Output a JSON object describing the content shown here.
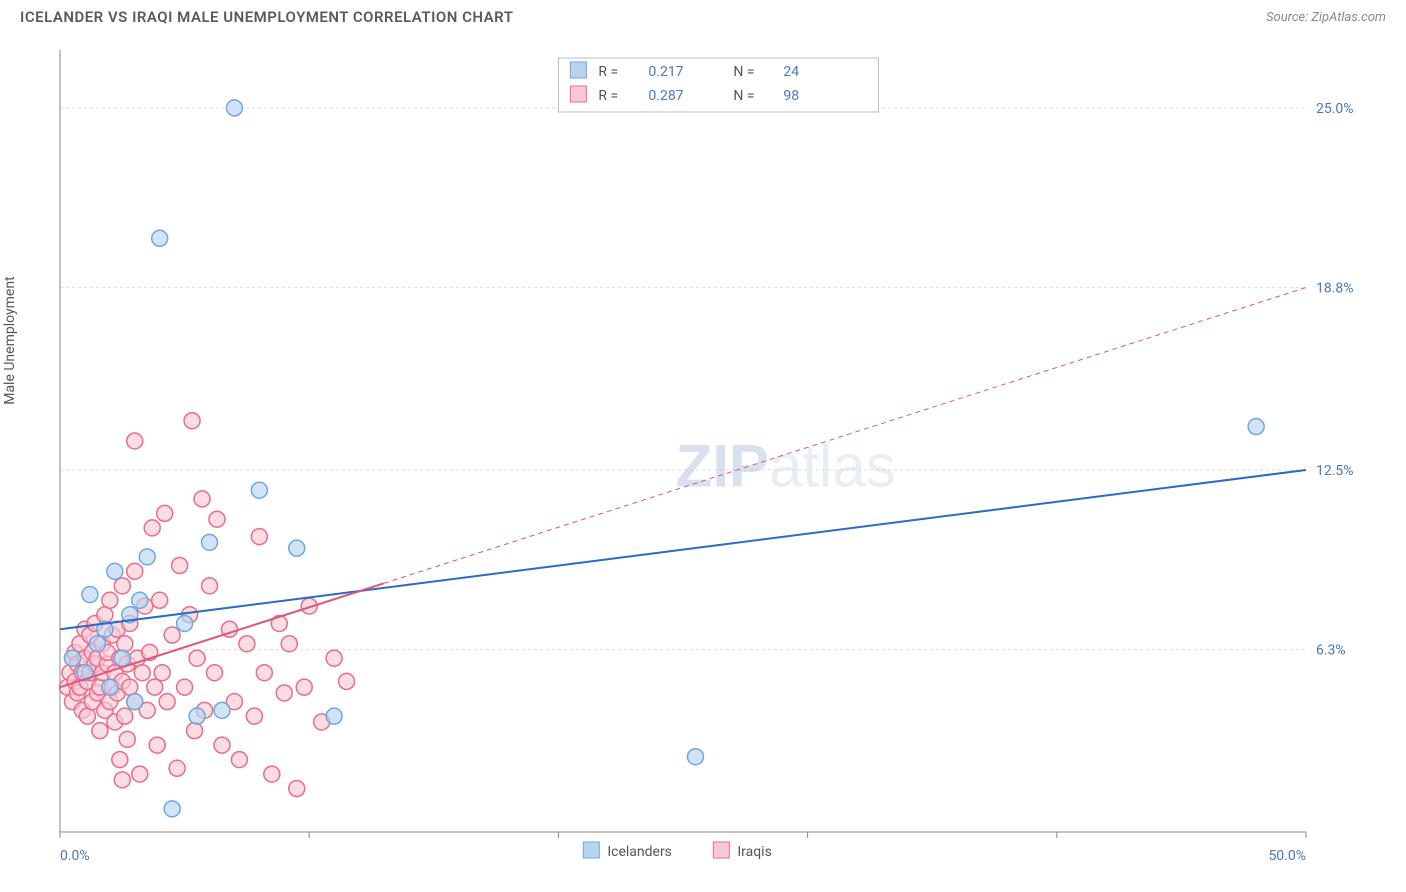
{
  "title": "ICELANDER VS IRAQI MALE UNEMPLOYMENT CORRELATION CHART",
  "source": "Source: ZipAtlas.com",
  "ylabel": "Male Unemployment",
  "watermark": {
    "bold": "ZIP",
    "light": "atlas"
  },
  "chart": {
    "type": "scatter",
    "background_color": "#ffffff",
    "grid_color": "#dddddd",
    "axis_color": "#888888",
    "xlim": [
      0,
      50
    ],
    "ylim": [
      0,
      27
    ],
    "x_ticks": [
      0,
      10,
      20,
      30,
      40,
      50
    ],
    "x_tick_labels": [
      "0.0%",
      "",
      "",
      "",
      "",
      "50.0%"
    ],
    "x_tick_label_color": "#4a75c4",
    "y_gridlines": [
      6.3,
      12.5,
      18.8,
      25.0
    ],
    "y_gridline_labels": [
      "6.3%",
      "12.5%",
      "18.8%",
      "25.0%"
    ],
    "y_tick_label_color": "#4a75c4",
    "marker_radius": 8,
    "marker_stroke_width": 1.5,
    "series": [
      {
        "name": "Icelanders",
        "color_fill": "#b9d4f0",
        "color_stroke": "#6ea8e0",
        "r_value": "0.217",
        "n_value": "24",
        "trend": {
          "x1": 0,
          "y1": 7.0,
          "x2": 50,
          "y2": 12.5,
          "solid_until_x": 50,
          "line_color": "#2a6cc2",
          "line_width": 2
        },
        "trend_end_label": "12.5%",
        "points": [
          [
            0.5,
            6.0
          ],
          [
            1.0,
            5.5
          ],
          [
            1.2,
            8.2
          ],
          [
            1.5,
            6.5
          ],
          [
            1.8,
            7.0
          ],
          [
            2.0,
            5.0
          ],
          [
            2.2,
            9.0
          ],
          [
            2.5,
            6.0
          ],
          [
            2.8,
            7.5
          ],
          [
            3.0,
            4.5
          ],
          [
            3.2,
            8.0
          ],
          [
            3.5,
            9.5
          ],
          [
            4.0,
            20.5
          ],
          [
            4.5,
            0.8
          ],
          [
            5.0,
            7.2
          ],
          [
            5.5,
            4.0
          ],
          [
            6.0,
            10.0
          ],
          [
            6.5,
            4.2
          ],
          [
            7.0,
            25.0
          ],
          [
            8.0,
            11.8
          ],
          [
            9.5,
            9.8
          ],
          [
            11.0,
            4.0
          ],
          [
            25.5,
            2.6
          ],
          [
            48.0,
            14.0
          ]
        ]
      },
      {
        "name": "Iraqis",
        "color_fill": "#f8c9d4",
        "color_stroke": "#ec6a8b",
        "r_value": "0.287",
        "n_value": "98",
        "trend": {
          "x1": 0,
          "y1": 5.0,
          "x2": 50,
          "y2": 18.8,
          "solid_until_x": 13,
          "line_color": "#e05577",
          "line_width": 2
        },
        "trend_end_label": "18.8%",
        "points": [
          [
            0.3,
            5.0
          ],
          [
            0.4,
            5.5
          ],
          [
            0.5,
            6.0
          ],
          [
            0.5,
            4.5
          ],
          [
            0.6,
            5.2
          ],
          [
            0.6,
            6.2
          ],
          [
            0.7,
            4.8
          ],
          [
            0.7,
            5.8
          ],
          [
            0.8,
            5.0
          ],
          [
            0.8,
            6.5
          ],
          [
            0.9,
            4.2
          ],
          [
            0.9,
            5.5
          ],
          [
            1.0,
            6.0
          ],
          [
            1.0,
            7.0
          ],
          [
            1.1,
            4.0
          ],
          [
            1.1,
            5.2
          ],
          [
            1.2,
            6.8
          ],
          [
            1.2,
            5.5
          ],
          [
            1.3,
            4.5
          ],
          [
            1.3,
            6.2
          ],
          [
            1.4,
            5.8
          ],
          [
            1.4,
            7.2
          ],
          [
            1.5,
            4.8
          ],
          [
            1.5,
            6.0
          ],
          [
            1.6,
            5.0
          ],
          [
            1.6,
            3.5
          ],
          [
            1.7,
            6.5
          ],
          [
            1.7,
            5.5
          ],
          [
            1.8,
            4.2
          ],
          [
            1.8,
            7.5
          ],
          [
            1.9,
            5.8
          ],
          [
            1.9,
            6.2
          ],
          [
            2.0,
            4.5
          ],
          [
            2.0,
            8.0
          ],
          [
            2.1,
            5.0
          ],
          [
            2.1,
            6.8
          ],
          [
            2.2,
            3.8
          ],
          [
            2.2,
            5.5
          ],
          [
            2.3,
            7.0
          ],
          [
            2.3,
            4.8
          ],
          [
            2.4,
            6.0
          ],
          [
            2.4,
            2.5
          ],
          [
            2.5,
            5.2
          ],
          [
            2.5,
            8.5
          ],
          [
            2.6,
            4.0
          ],
          [
            2.6,
            6.5
          ],
          [
            2.7,
            5.8
          ],
          [
            2.7,
            3.2
          ],
          [
            2.8,
            7.2
          ],
          [
            2.8,
            5.0
          ],
          [
            3.0,
            4.5
          ],
          [
            3.0,
            9.0
          ],
          [
            3.1,
            6.0
          ],
          [
            3.2,
            2.0
          ],
          [
            3.3,
            5.5
          ],
          [
            3.4,
            7.8
          ],
          [
            3.5,
            4.2
          ],
          [
            3.6,
            6.2
          ],
          [
            3.7,
            10.5
          ],
          [
            3.8,
            5.0
          ],
          [
            3.9,
            3.0
          ],
          [
            4.0,
            8.0
          ],
          [
            4.1,
            5.5
          ],
          [
            4.2,
            11.0
          ],
          [
            4.3,
            4.5
          ],
          [
            4.5,
            6.8
          ],
          [
            4.7,
            2.2
          ],
          [
            4.8,
            9.2
          ],
          [
            5.0,
            5.0
          ],
          [
            5.2,
            7.5
          ],
          [
            5.3,
            14.2
          ],
          [
            5.4,
            3.5
          ],
          [
            5.5,
            6.0
          ],
          [
            5.7,
            11.5
          ],
          [
            5.8,
            4.2
          ],
          [
            6.0,
            8.5
          ],
          [
            6.2,
            5.5
          ],
          [
            6.3,
            10.8
          ],
          [
            6.5,
            3.0
          ],
          [
            6.8,
            7.0
          ],
          [
            7.0,
            4.5
          ],
          [
            7.2,
            2.5
          ],
          [
            7.5,
            6.5
          ],
          [
            7.8,
            4.0
          ],
          [
            8.0,
            10.2
          ],
          [
            8.2,
            5.5
          ],
          [
            8.5,
            2.0
          ],
          [
            8.8,
            7.2
          ],
          [
            9.0,
            4.8
          ],
          [
            9.2,
            6.5
          ],
          [
            9.5,
            1.5
          ],
          [
            9.8,
            5.0
          ],
          [
            10.0,
            7.8
          ],
          [
            10.5,
            3.8
          ],
          [
            11.0,
            6.0
          ],
          [
            11.5,
            5.2
          ],
          [
            2.5,
            1.8
          ],
          [
            3.0,
            13.5
          ]
        ]
      }
    ],
    "stat_box": {
      "border_color": "#bbbbbb",
      "bg_color": "#ffffff"
    },
    "bottom_legend": {
      "items": [
        "Icelanders",
        "Iraqis"
      ]
    }
  }
}
